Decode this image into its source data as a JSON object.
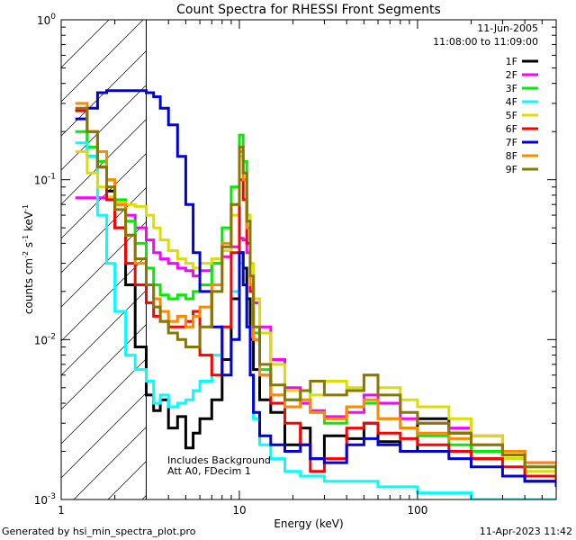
{
  "chart_data": {
    "type": "line",
    "title": "Count Spectra for RHESSI Front Segments",
    "xlabel": "Energy (keV)",
    "ylabel_main": "counts cm",
    "ylabel_exp1": "-2",
    "ylabel_mid": " s",
    "ylabel_exp2": "-1",
    "ylabel_tail": " keV",
    "ylabel_exp3": "-1",
    "x_scale": "log",
    "y_scale": "log",
    "xlim": [
      1,
      600
    ],
    "ylim": [
      0.001,
      1
    ],
    "x_ticks": [
      {
        "v": 1,
        "label": "1"
      },
      {
        "v": 10,
        "label": "10"
      },
      {
        "v": 100,
        "label": "100"
      }
    ],
    "y_ticks": [
      {
        "v": 1,
        "base": "10",
        "exp": "0"
      },
      {
        "v": 0.1,
        "base": "10",
        "exp": "-1"
      },
      {
        "v": 0.01,
        "base": "10",
        "exp": "-2"
      },
      {
        "v": 0.001,
        "base": "10",
        "exp": "-3"
      }
    ],
    "date_text": "11-Jun-2005",
    "time_text": "11:08:00 to 11:09:00",
    "annotation1": "Includes Background",
    "annotation2": "Att A0, FDecim 1",
    "hatch_limit_kev": 3,
    "legend_position": "top-right",
    "series": [
      {
        "name": "1F",
        "color": "#000000",
        "x": [
          1.2,
          1.4,
          1.6,
          1.8,
          2.0,
          2.3,
          2.6,
          3.0,
          3.3,
          3.6,
          4.0,
          4.5,
          5.0,
          5.5,
          6.0,
          7.0,
          8.0,
          9.0,
          10.0,
          10.5,
          11.0,
          11.5,
          12.0,
          13.0,
          15.0,
          18.0,
          22.0,
          25.0,
          30.0,
          40.0,
          50.0,
          60.0,
          80.0,
          100.0,
          150.0,
          200.0,
          300.0,
          400.0,
          600.0
        ],
        "y": [
          0.27,
          0.14,
          0.12,
          0.085,
          0.05,
          0.022,
          0.009,
          0.0045,
          0.0036,
          0.0042,
          0.0028,
          0.0033,
          0.0021,
          0.0026,
          0.0032,
          0.0042,
          0.0075,
          0.018,
          0.035,
          0.028,
          0.018,
          0.01,
          0.0065,
          0.0042,
          0.0035,
          0.0022,
          0.0028,
          0.0018,
          0.0025,
          0.0024,
          0.003,
          0.0023,
          0.002,
          0.0032,
          0.0026,
          0.0018,
          0.002,
          0.0013,
          0.0012
        ]
      },
      {
        "name": "2F",
        "color": "#ff00ff",
        "x": [
          1.2,
          1.4,
          1.6,
          1.8,
          2.0,
          2.3,
          2.6,
          3.0,
          3.3,
          3.6,
          4.0,
          4.5,
          5.0,
          5.5,
          6.0,
          7.0,
          8.0,
          9.0,
          10.0,
          10.5,
          11.0,
          11.5,
          12.0,
          13.0,
          15.0,
          18.0,
          22.0,
          25.0,
          30.0,
          40.0,
          50.0,
          60.0,
          80.0,
          100.0,
          150.0,
          200.0,
          300.0,
          400.0,
          600.0
        ],
        "y": [
          0.077,
          0.077,
          0.077,
          0.075,
          0.07,
          0.06,
          0.05,
          0.042,
          0.035,
          0.032,
          0.03,
          0.028,
          0.027,
          0.025,
          0.027,
          0.03,
          0.033,
          0.038,
          0.043,
          0.042,
          0.035,
          0.025,
          0.017,
          0.012,
          0.0075,
          0.005,
          0.004,
          0.0036,
          0.0033,
          0.0035,
          0.0045,
          0.004,
          0.0032,
          0.003,
          0.0028,
          0.0025,
          0.002,
          0.0017,
          0.0015
        ]
      },
      {
        "name": "3F",
        "color": "#00ee00",
        "x": [
          1.2,
          1.4,
          1.6,
          1.8,
          2.0,
          2.3,
          2.6,
          3.0,
          3.3,
          3.6,
          4.0,
          4.5,
          5.0,
          5.5,
          6.0,
          7.0,
          8.0,
          9.0,
          10.0,
          10.5,
          11.0,
          11.5,
          12.0,
          13.0,
          15.0,
          18.0,
          22.0,
          25.0,
          30.0,
          40.0,
          50.0,
          60.0,
          80.0,
          100.0,
          150.0,
          200.0,
          300.0,
          400.0,
          600.0
        ],
        "y": [
          0.2,
          0.16,
          0.13,
          0.1,
          0.075,
          0.055,
          0.04,
          0.028,
          0.022,
          0.019,
          0.018,
          0.019,
          0.018,
          0.02,
          0.022,
          0.03,
          0.05,
          0.09,
          0.19,
          0.13,
          0.06,
          0.025,
          0.011,
          0.0065,
          0.0045,
          0.0042,
          0.0048,
          0.0035,
          0.003,
          0.0038,
          0.004,
          0.0032,
          0.0028,
          0.0025,
          0.0022,
          0.002,
          0.0018,
          0.0016,
          0.0015
        ]
      },
      {
        "name": "4F",
        "color": "#00ffff",
        "x": [
          1.2,
          1.4,
          1.6,
          1.8,
          2.0,
          2.3,
          2.6,
          3.0,
          3.3,
          3.6,
          4.0,
          4.5,
          5.0,
          5.5,
          6.0,
          7.0,
          8.0,
          9.0,
          10.0,
          10.5,
          11.0,
          11.5,
          12.0,
          13.0,
          15.0,
          18.0,
          22.0,
          25.0,
          30.0,
          40.0,
          50.0,
          60.0,
          80.0,
          100.0,
          150.0,
          200.0,
          300.0,
          400.0,
          600.0
        ],
        "y": [
          0.17,
          0.14,
          0.06,
          0.03,
          0.015,
          0.008,
          0.0065,
          0.0055,
          0.004,
          0.0045,
          0.0038,
          0.004,
          0.0042,
          0.0048,
          0.0055,
          0.008,
          0.012,
          0.02,
          0.03,
          0.022,
          0.012,
          0.006,
          0.0032,
          0.0022,
          0.0018,
          0.0015,
          0.0014,
          0.0014,
          0.0013,
          0.0013,
          0.0013,
          0.0012,
          0.0012,
          0.0011,
          0.0011,
          0.001,
          0.001,
          0.001,
          0.001
        ]
      },
      {
        "name": "5F",
        "color": "#dddd00",
        "x": [
          1.2,
          1.4,
          1.6,
          1.8,
          2.0,
          2.3,
          2.6,
          3.0,
          3.3,
          3.6,
          4.0,
          4.5,
          5.0,
          5.5,
          6.0,
          7.0,
          8.0,
          9.0,
          10.0,
          10.5,
          11.0,
          11.5,
          12.0,
          13.0,
          15.0,
          18.0,
          22.0,
          25.0,
          30.0,
          40.0,
          50.0,
          60.0,
          80.0,
          100.0,
          150.0,
          200.0,
          300.0,
          400.0,
          600.0
        ],
        "y": [
          0.15,
          0.11,
          0.09,
          0.078,
          0.072,
          0.07,
          0.068,
          0.06,
          0.05,
          0.042,
          0.036,
          0.032,
          0.03,
          0.028,
          0.03,
          0.032,
          0.036,
          0.06,
          0.14,
          0.1,
          0.06,
          0.03,
          0.018,
          0.011,
          0.007,
          0.0048,
          0.0042,
          0.0045,
          0.0055,
          0.005,
          0.006,
          0.005,
          0.0042,
          0.0038,
          0.0032,
          0.0025,
          0.0018,
          0.0015,
          0.0013
        ]
      },
      {
        "name": "6F",
        "color": "#ff0000",
        "x": [
          1.2,
          1.4,
          1.6,
          1.8,
          2.0,
          2.3,
          2.6,
          3.0,
          3.3,
          3.6,
          4.0,
          4.5,
          5.0,
          5.5,
          6.0,
          7.0,
          8.0,
          9.0,
          10.0,
          10.5,
          11.0,
          11.5,
          12.0,
          13.0,
          15.0,
          18.0,
          22.0,
          25.0,
          30.0,
          40.0,
          50.0,
          60.0,
          80.0,
          100.0,
          150.0,
          200.0,
          300.0,
          400.0,
          600.0
        ],
        "y": [
          0.27,
          0.2,
          0.12,
          0.075,
          0.05,
          0.03,
          0.022,
          0.017,
          0.014,
          0.013,
          0.012,
          0.012,
          0.013,
          0.015,
          0.008,
          0.006,
          0.012,
          0.035,
          0.1,
          0.075,
          0.04,
          0.02,
          0.01,
          0.006,
          0.004,
          0.003,
          0.0022,
          0.0015,
          0.0018,
          0.0028,
          0.003,
          0.0026,
          0.0024,
          0.0022,
          0.002,
          0.0018,
          0.0016,
          0.0014,
          0.0012
        ]
      },
      {
        "name": "7F",
        "color": "#0000dd",
        "x": [
          1.2,
          1.4,
          1.6,
          1.8,
          2.0,
          2.3,
          2.6,
          3.0,
          3.3,
          3.6,
          4.0,
          4.5,
          5.0,
          5.5,
          6.0,
          7.0,
          8.0,
          9.0,
          10.0,
          10.5,
          11.0,
          11.5,
          12.0,
          13.0,
          15.0,
          18.0,
          22.0,
          25.0,
          30.0,
          40.0,
          50.0,
          60.0,
          80.0,
          100.0,
          150.0,
          200.0,
          300.0,
          400.0,
          600.0
        ],
        "y": [
          0.24,
          0.28,
          0.35,
          0.36,
          0.36,
          0.36,
          0.36,
          0.35,
          0.33,
          0.28,
          0.22,
          0.14,
          0.07,
          0.035,
          0.02,
          0.012,
          0.006,
          0.01,
          0.035,
          0.022,
          0.012,
          0.006,
          0.0035,
          0.0025,
          0.0022,
          0.002,
          0.0022,
          0.0018,
          0.0017,
          0.0022,
          0.0024,
          0.0022,
          0.002,
          0.002,
          0.0018,
          0.0016,
          0.0014,
          0.0013,
          0.0012
        ]
      },
      {
        "name": "8F",
        "color": "#ff8800",
        "x": [
          1.2,
          1.4,
          1.6,
          1.8,
          2.0,
          2.3,
          2.6,
          3.0,
          3.3,
          3.6,
          4.0,
          4.5,
          5.0,
          5.5,
          6.0,
          7.0,
          8.0,
          9.0,
          10.0,
          10.5,
          11.0,
          11.5,
          12.0,
          13.0,
          15.0,
          18.0,
          22.0,
          25.0,
          30.0,
          40.0,
          50.0,
          60.0,
          80.0,
          100.0,
          150.0,
          200.0,
          300.0,
          400.0,
          600.0
        ],
        "y": [
          0.3,
          0.2,
          0.15,
          0.1,
          0.07,
          0.045,
          0.03,
          0.022,
          0.018,
          0.015,
          0.013,
          0.014,
          0.012,
          0.014,
          0.016,
          0.022,
          0.04,
          0.07,
          0.15,
          0.1,
          0.05,
          0.022,
          0.01,
          0.006,
          0.0045,
          0.0038,
          0.0042,
          0.0035,
          0.0032,
          0.0038,
          0.0042,
          0.0032,
          0.0028,
          0.0026,
          0.0024,
          0.0022,
          0.002,
          0.0017,
          0.0015
        ]
      },
      {
        "name": "9F",
        "color": "#887700",
        "x": [
          1.2,
          1.4,
          1.6,
          1.8,
          2.0,
          2.3,
          2.6,
          3.0,
          3.3,
          3.6,
          4.0,
          4.5,
          5.0,
          5.5,
          6.0,
          7.0,
          8.0,
          9.0,
          10.0,
          10.5,
          11.0,
          11.5,
          12.0,
          13.0,
          15.0,
          18.0,
          22.0,
          25.0,
          30.0,
          40.0,
          50.0,
          60.0,
          80.0,
          100.0,
          150.0,
          200.0,
          300.0,
          400.0,
          600.0
        ],
        "y": [
          0.28,
          0.2,
          0.12,
          0.09,
          0.065,
          0.045,
          0.032,
          0.022,
          0.016,
          0.013,
          0.011,
          0.01,
          0.009,
          0.009,
          0.012,
          0.02,
          0.038,
          0.07,
          0.16,
          0.11,
          0.055,
          0.025,
          0.012,
          0.007,
          0.0052,
          0.0042,
          0.0048,
          0.0055,
          0.0045,
          0.0048,
          0.006,
          0.0045,
          0.0035,
          0.003,
          0.0026,
          0.0022,
          0.0019,
          0.0016,
          0.0014
        ]
      }
    ]
  },
  "footer": {
    "left": "Generated by hsi_min_spectra_plot.pro",
    "right": "11-Apr-2023 11:42"
  }
}
